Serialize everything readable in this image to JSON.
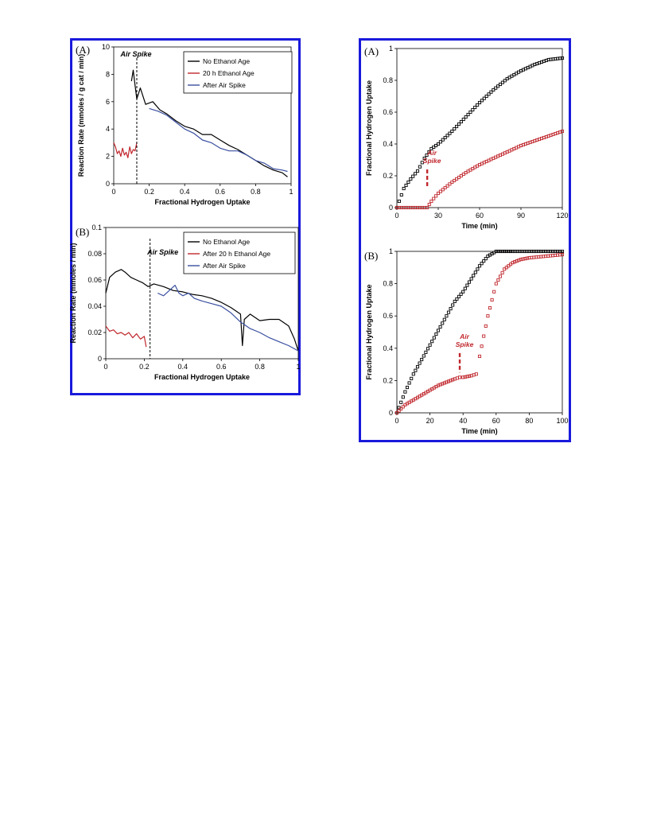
{
  "colors": {
    "frame": "#1a1adc",
    "black": "#000000",
    "red": "#c0272d",
    "blue": "#3a4fa0"
  },
  "chart_data": [
    {
      "id": "left-A",
      "type": "line",
      "panel_label": "(A)",
      "xlabel": "Fractional Hydrogen Uptake",
      "ylabel": "Reaction Rate (mmoles / g cat / min)",
      "xlim": [
        0,
        1
      ],
      "ylim": [
        0,
        10
      ],
      "xticks": [
        "0",
        "0.2",
        "0.4",
        "0.6",
        "0.8",
        "1"
      ],
      "xtick_vals": [
        0,
        0.2,
        0.4,
        0.6,
        0.8,
        1
      ],
      "yticks": [
        "0",
        "2",
        "4",
        "6",
        "8",
        "10"
      ],
      "ytick_vals": [
        0,
        2,
        4,
        6,
        8,
        10
      ],
      "legend_position": "top-right",
      "annotation": {
        "text": "Air Spike",
        "x": 0.13
      },
      "series": [
        {
          "name": "No Ethanol Age",
          "color": "#000000",
          "x": [
            0.1,
            0.11,
            0.12,
            0.13,
            0.15,
            0.18,
            0.22,
            0.26,
            0.3,
            0.35,
            0.4,
            0.45,
            0.5,
            0.55,
            0.6,
            0.65,
            0.7,
            0.75,
            0.8,
            0.85,
            0.9,
            0.95,
            0.98
          ],
          "y": [
            7.5,
            8.3,
            7.2,
            6.2,
            7.0,
            5.8,
            6.0,
            5.4,
            5.1,
            4.6,
            4.2,
            4.0,
            3.6,
            3.6,
            3.2,
            2.8,
            2.5,
            2.1,
            1.7,
            1.3,
            1.0,
            0.8,
            0.5
          ]
        },
        {
          "name": "20 h Ethanol Age",
          "color": "#c0272d",
          "x": [
            0.0,
            0.01,
            0.02,
            0.03,
            0.04,
            0.05,
            0.06,
            0.07,
            0.08,
            0.09,
            0.1,
            0.11,
            0.12,
            0.13
          ],
          "y": [
            3.0,
            2.7,
            2.2,
            2.4,
            2.0,
            2.6,
            2.1,
            2.3,
            1.9,
            2.7,
            2.2,
            2.5,
            2.4,
            3.0
          ]
        },
        {
          "name": "After Air Spike",
          "color": "#3a4fa0",
          "x": [
            0.2,
            0.25,
            0.3,
            0.35,
            0.4,
            0.45,
            0.5,
            0.55,
            0.6,
            0.65,
            0.7,
            0.75,
            0.8,
            0.85,
            0.9,
            0.95,
            0.98
          ],
          "y": [
            5.5,
            5.3,
            5.0,
            4.5,
            4.0,
            3.7,
            3.2,
            3.0,
            2.6,
            2.4,
            2.4,
            2.1,
            1.7,
            1.5,
            1.1,
            1.0,
            0.9
          ]
        }
      ]
    },
    {
      "id": "left-B",
      "type": "line",
      "panel_label": "(B)",
      "xlabel": "Fractional Hydrogen Uptake",
      "ylabel": "Reaction Rate (mmoles / min)",
      "xlim": [
        0,
        1
      ],
      "ylim": [
        0,
        0.1
      ],
      "xticks": [
        "0",
        "0.2",
        "0.4",
        "0.6",
        "0.8",
        "1"
      ],
      "xtick_vals": [
        0,
        0.2,
        0.4,
        0.6,
        0.8,
        1
      ],
      "yticks": [
        "0",
        "0.02",
        "0.04",
        "0.06",
        "0.08",
        "0.1"
      ],
      "ytick_vals": [
        0,
        0.02,
        0.04,
        0.06,
        0.08,
        0.1
      ],
      "legend_position": "top-right",
      "annotation": {
        "text": "Air Spike",
        "x": 0.23
      },
      "series": [
        {
          "name": "No Ethanol Age",
          "color": "#000000",
          "x": [
            0.0,
            0.02,
            0.05,
            0.08,
            0.1,
            0.13,
            0.16,
            0.19,
            0.22,
            0.25,
            0.3,
            0.35,
            0.4,
            0.45,
            0.5,
            0.55,
            0.6,
            0.65,
            0.7,
            0.71,
            0.72,
            0.75,
            0.8,
            0.85,
            0.9,
            0.95,
            0.98,
            1.0
          ],
          "y": [
            0.05,
            0.062,
            0.066,
            0.068,
            0.066,
            0.062,
            0.06,
            0.058,
            0.055,
            0.057,
            0.055,
            0.052,
            0.051,
            0.049,
            0.048,
            0.046,
            0.043,
            0.039,
            0.034,
            0.01,
            0.03,
            0.034,
            0.029,
            0.03,
            0.03,
            0.025,
            0.015,
            0.006
          ]
        },
        {
          "name": "After 20 h Ethanol Age",
          "color": "#c0272d",
          "x": [
            0.0,
            0.02,
            0.04,
            0.06,
            0.08,
            0.1,
            0.12,
            0.14,
            0.16,
            0.18,
            0.2,
            0.21
          ],
          "y": [
            0.025,
            0.021,
            0.022,
            0.019,
            0.02,
            0.018,
            0.02,
            0.016,
            0.019,
            0.015,
            0.017,
            0.009
          ]
        },
        {
          "name": "After Air Spike",
          "color": "#3a4fa0",
          "x": [
            0.27,
            0.3,
            0.33,
            0.36,
            0.38,
            0.4,
            0.43,
            0.46,
            0.5,
            0.55,
            0.6,
            0.65,
            0.7,
            0.75,
            0.8,
            0.85,
            0.9,
            0.95,
            1.0
          ],
          "y": [
            0.05,
            0.048,
            0.052,
            0.056,
            0.05,
            0.048,
            0.05,
            0.046,
            0.044,
            0.042,
            0.04,
            0.035,
            0.028,
            0.023,
            0.02,
            0.016,
            0.013,
            0.01,
            0.006
          ]
        }
      ]
    },
    {
      "id": "right-A",
      "type": "scatter",
      "panel_label": "(A)",
      "xlabel": "Time (min)",
      "ylabel": "Fractional Hydrogen Uptake",
      "xlim": [
        0,
        120
      ],
      "ylim": [
        0,
        1
      ],
      "xticks": [
        "0",
        "30",
        "60",
        "90",
        "120"
      ],
      "xtick_vals": [
        0,
        30,
        60,
        90,
        120
      ],
      "yticks": [
        "0",
        "0.2",
        "0.4",
        "0.6",
        "0.8",
        "1"
      ],
      "ytick_vals": [
        0,
        0.2,
        0.4,
        0.6,
        0.8,
        1
      ],
      "annotation": {
        "text_lines": [
          "Air",
          "Spike"
        ],
        "x": 22
      },
      "series": [
        {
          "name": "",
          "color": "#000000",
          "x": [
            0,
            5,
            10,
            15,
            20,
            25,
            30,
            40,
            50,
            60,
            70,
            80,
            90,
            100,
            110,
            120
          ],
          "y": [
            0.0,
            0.12,
            0.18,
            0.23,
            0.31,
            0.37,
            0.4,
            0.48,
            0.57,
            0.66,
            0.74,
            0.81,
            0.86,
            0.9,
            0.93,
            0.94
          ]
        },
        {
          "name": "",
          "color": "#c0272d",
          "x": [
            0,
            10,
            20,
            22,
            25,
            30,
            40,
            50,
            60,
            70,
            80,
            90,
            100,
            110,
            120
          ],
          "y": [
            0.0,
            0.0,
            0.0,
            0.0,
            0.04,
            0.09,
            0.16,
            0.22,
            0.27,
            0.31,
            0.35,
            0.39,
            0.42,
            0.45,
            0.48
          ]
        }
      ]
    },
    {
      "id": "right-B",
      "type": "scatter",
      "panel_label": "(B)",
      "xlabel": "Time (min)",
      "ylabel": "Fractional Hydrogen Uptake",
      "xlim": [
        0,
        100
      ],
      "ylim": [
        0,
        1
      ],
      "xticks": [
        "0",
        "20",
        "40",
        "60",
        "80",
        "100"
      ],
      "xtick_vals": [
        0,
        20,
        40,
        60,
        80,
        100
      ],
      "yticks": [
        "0",
        "0.2",
        "0.4",
        "0.6",
        "0.8",
        "1"
      ],
      "ytick_vals": [
        0,
        0.2,
        0.4,
        0.6,
        0.8,
        1
      ],
      "annotation": {
        "text_lines": [
          "Air",
          "Spike"
        ],
        "x": 38
      },
      "series": [
        {
          "name": "",
          "color": "#000000",
          "x": [
            0,
            5,
            10,
            15,
            20,
            25,
            30,
            35,
            40,
            45,
            50,
            55,
            60,
            65,
            70,
            80,
            90,
            100
          ],
          "y": [
            0.0,
            0.13,
            0.24,
            0.33,
            0.42,
            0.51,
            0.6,
            0.69,
            0.75,
            0.83,
            0.91,
            0.97,
            1.0,
            1.0,
            1.0,
            1.0,
            1.0,
            1.0
          ]
        },
        {
          "name": "",
          "color": "#c0272d",
          "x": [
            0,
            5,
            10,
            15,
            20,
            25,
            30,
            35,
            38,
            40,
            45,
            48,
            50,
            55,
            60,
            65,
            70,
            75,
            80,
            90,
            100
          ],
          "y": [
            0.0,
            0.05,
            0.08,
            0.11,
            0.14,
            0.17,
            0.19,
            0.21,
            0.22,
            0.22,
            0.23,
            0.24,
            0.35,
            0.6,
            0.8,
            0.89,
            0.93,
            0.95,
            0.96,
            0.97,
            0.98
          ]
        }
      ]
    }
  ]
}
